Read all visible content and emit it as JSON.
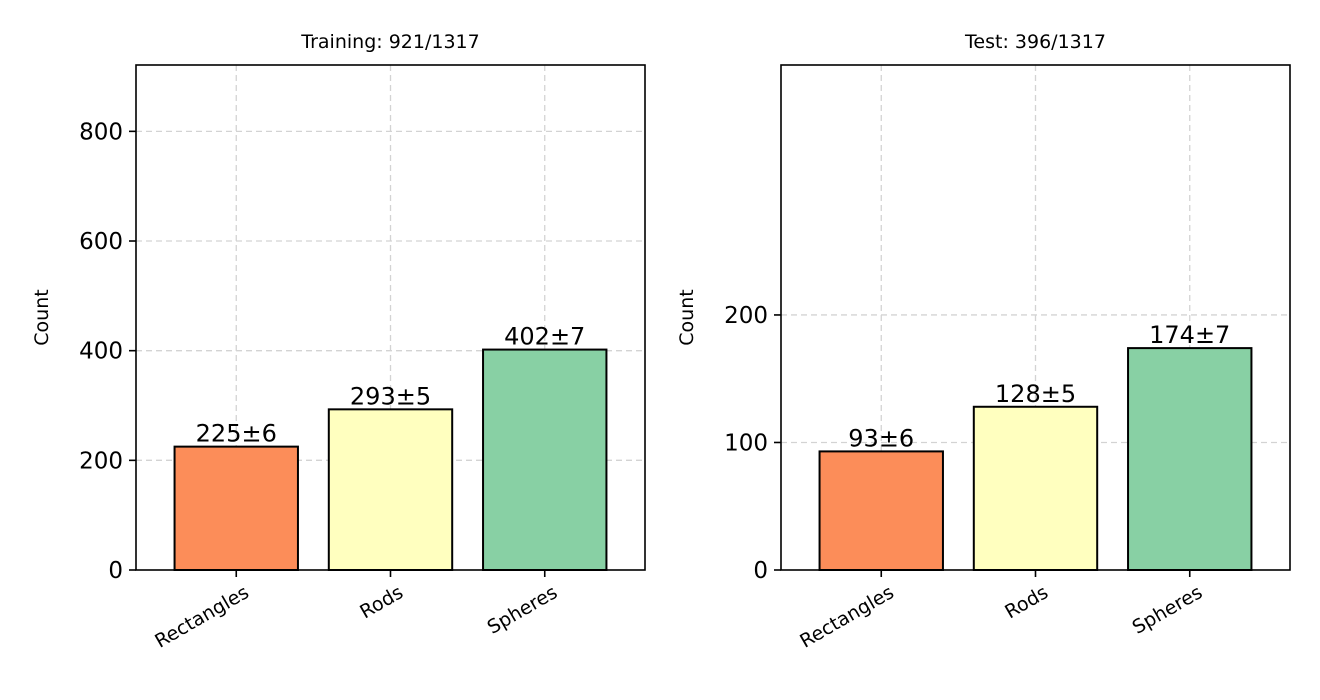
{
  "chart_data": [
    {
      "type": "bar",
      "title": "Training: 921/1317",
      "xlabel": "",
      "ylabel": "Count",
      "categories": [
        "Rectangles",
        "Rods",
        "Spheres"
      ],
      "values": [
        225,
        293,
        402
      ],
      "errors": [
        6,
        5,
        7
      ],
      "bar_labels": [
        "225±6",
        "293±5",
        "402±7"
      ],
      "colors": [
        "#fc8d59",
        "#ffffbf",
        "#88d0a4"
      ],
      "ylim": [
        0,
        921
      ],
      "yticks": [
        0,
        200,
        400,
        600,
        800
      ],
      "ytick_labels": [
        "0",
        "200",
        "400",
        "600",
        "800"
      ],
      "grid": true
    },
    {
      "type": "bar",
      "title": "Test: 396/1317",
      "xlabel": "",
      "ylabel": "Count",
      "categories": [
        "Rectangles",
        "Rods",
        "Spheres"
      ],
      "values": [
        93,
        128,
        174
      ],
      "errors": [
        6,
        5,
        7
      ],
      "bar_labels": [
        "93±6",
        "128±5",
        "174±7"
      ],
      "colors": [
        "#fc8d59",
        "#ffffbf",
        "#88d0a4"
      ],
      "ylim": [
        0,
        396
      ],
      "yticks": [
        0,
        100,
        200
      ],
      "ytick_labels": [
        "0",
        "100",
        "200"
      ],
      "grid": true
    }
  ]
}
